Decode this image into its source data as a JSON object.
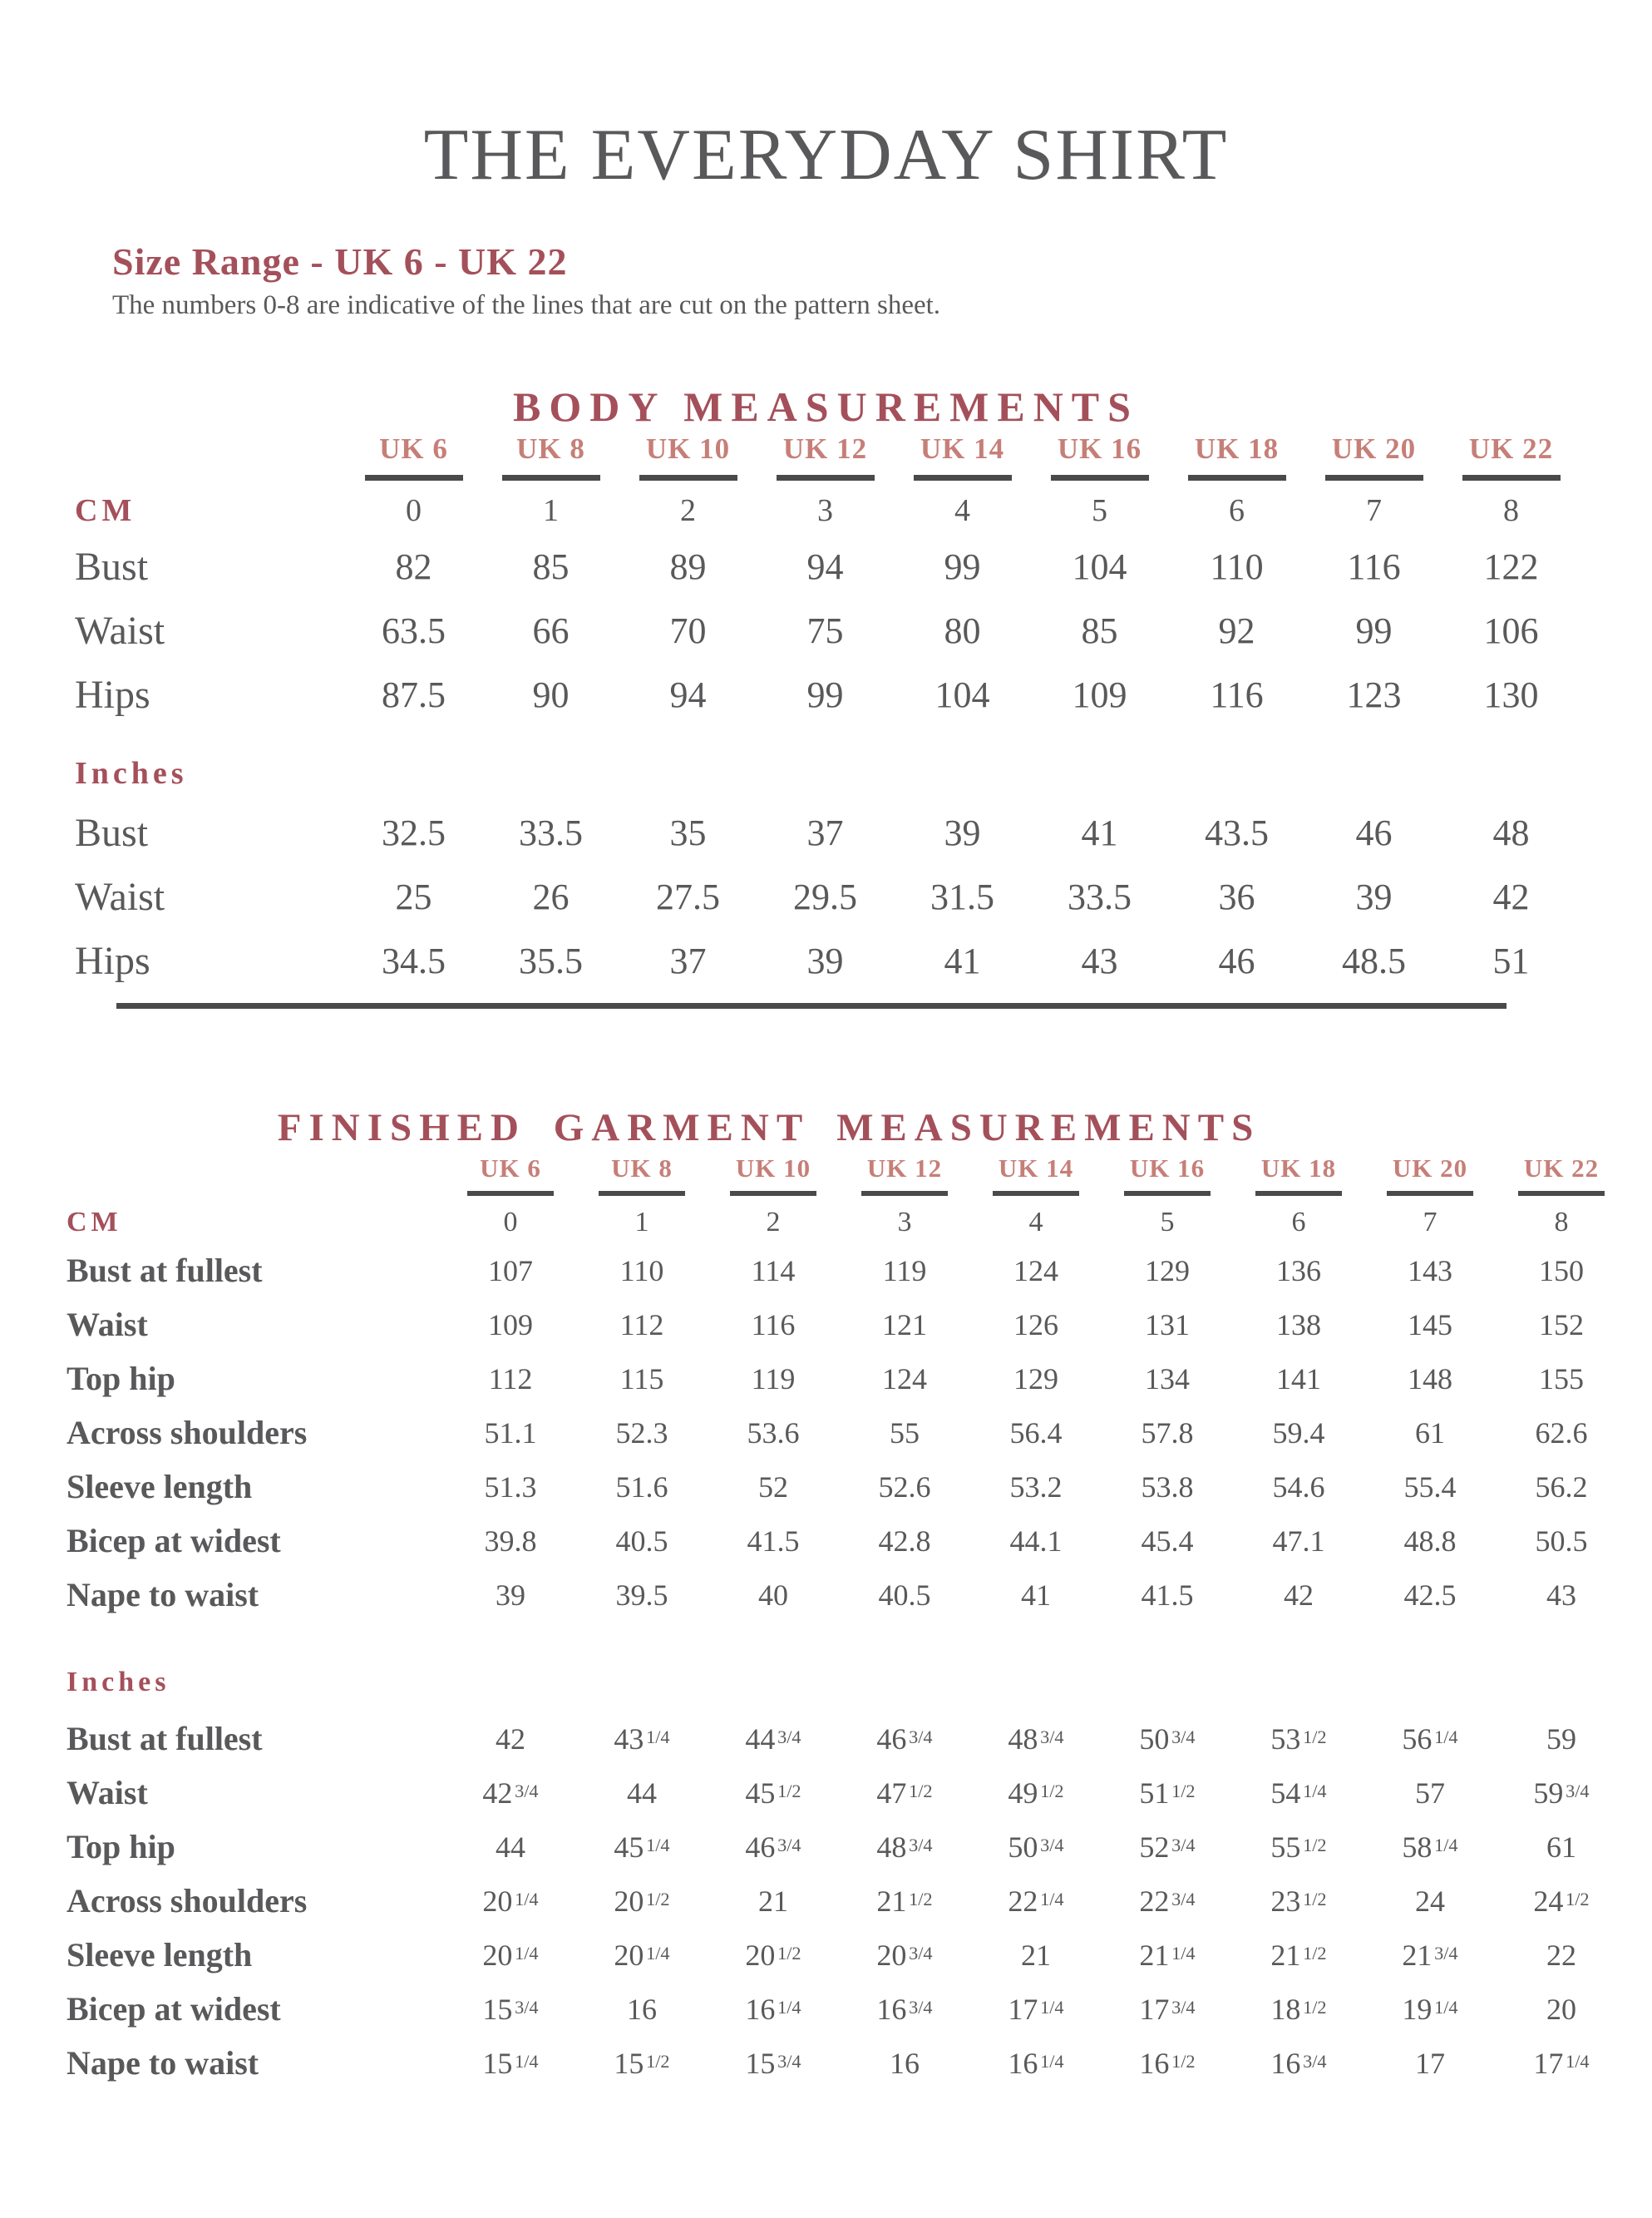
{
  "page": {
    "title": "THE EVERYDAY SHIRT",
    "size_range_heading": "Size Range - UK 6 - UK 22",
    "size_range_note": "The numbers 0-8 are indicative of the lines that are cut on the pattern sheet."
  },
  "colors": {
    "heading_maroon": "#a4505a",
    "uk_header_salmon": "#c67f78",
    "text_gray": "#59595b",
    "rule_gray": "#4a4a4a"
  },
  "columns": {
    "uk_sizes": [
      "UK 6",
      "UK 8",
      "UK 10",
      "UK 12",
      "UK 14",
      "UK 16",
      "UK 18",
      "UK 20",
      "UK 22"
    ],
    "pattern_line_numbers": [
      "0",
      "1",
      "2",
      "3",
      "4",
      "5",
      "6",
      "7",
      "8"
    ]
  },
  "body_measurements": {
    "title": "BODY MEASUREMENTS",
    "cm_label": "CM",
    "inches_label": "Inches",
    "cm_rows": [
      {
        "label": "Bust",
        "values": [
          "82",
          "85",
          "89",
          "94",
          "99",
          "104",
          "110",
          "116",
          "122"
        ]
      },
      {
        "label": "Waist",
        "values": [
          "63.5",
          "66",
          "70",
          "75",
          "80",
          "85",
          "92",
          "99",
          "106"
        ]
      },
      {
        "label": "Hips",
        "values": [
          "87.5",
          "90",
          "94",
          "99",
          "104",
          "109",
          "116",
          "123",
          "130"
        ]
      }
    ],
    "inches_rows": [
      {
        "label": "Bust",
        "values": [
          "32.5",
          "33.5",
          "35",
          "37",
          "39",
          "41",
          "43.5",
          "46",
          "48"
        ]
      },
      {
        "label": "Waist",
        "values": [
          "25",
          "26",
          "27.5",
          "29.5",
          "31.5",
          "33.5",
          "36",
          "39",
          "42"
        ]
      },
      {
        "label": "Hips",
        "values": [
          "34.5",
          "35.5",
          "37",
          "39",
          "41",
          "43",
          "46",
          "48.5",
          "51"
        ]
      }
    ]
  },
  "finished_garment": {
    "title": "FINISHED GARMENT MEASUREMENTS",
    "cm_label": "CM",
    "inches_label": "Inches",
    "cm_rows": [
      {
        "label": "Bust at fullest",
        "values": [
          "107",
          "110",
          "114",
          "119",
          "124",
          "129",
          "136",
          "143",
          "150"
        ]
      },
      {
        "label": "Waist",
        "values": [
          "109",
          "112",
          "116",
          "121",
          "126",
          "131",
          "138",
          "145",
          "152"
        ]
      },
      {
        "label": "Top hip",
        "values": [
          "112",
          "115",
          "119",
          "124",
          "129",
          "134",
          "141",
          "148",
          "155"
        ]
      },
      {
        "label": "Across shoulders",
        "values": [
          "51.1",
          "52.3",
          "53.6",
          "55",
          "56.4",
          "57.8",
          "59.4",
          "61",
          "62.6"
        ]
      },
      {
        "label": "Sleeve length",
        "values": [
          "51.3",
          "51.6",
          "52",
          "52.6",
          "53.2",
          "53.8",
          "54.6",
          "55.4",
          "56.2"
        ]
      },
      {
        "label": "Bicep at widest",
        "values": [
          "39.8",
          "40.5",
          "41.5",
          "42.8",
          "44.1",
          "45.4",
          "47.1",
          "48.8",
          "50.5"
        ]
      },
      {
        "label": "Nape to waist",
        "values": [
          "39",
          "39.5",
          "40",
          "40.5",
          "41",
          "41.5",
          "42",
          "42.5",
          "43"
        ]
      }
    ],
    "inches_rows": [
      {
        "label": "Bust at fullest",
        "values": [
          "42",
          "43 1/4",
          "44 3/4",
          "46 3/4",
          "48 3/4",
          "50 3/4",
          "53 1/2",
          "56 1/4",
          "59"
        ]
      },
      {
        "label": "Waist",
        "values": [
          "42 3/4",
          "44",
          "45 1/2",
          "47 1/2",
          "49 1/2",
          "51 1/2",
          "54 1/4",
          "57",
          "59 3/4"
        ]
      },
      {
        "label": "Top hip",
        "values": [
          "44",
          "45 1/4",
          "46 3/4",
          "48 3/4",
          "50 3/4",
          "52 3/4",
          "55 1/2",
          "58 1/4",
          "61"
        ]
      },
      {
        "label": "Across shoulders",
        "values": [
          "20 1/4",
          "20 1/2",
          "21",
          "21 1/2",
          "22 1/4",
          "22 3/4",
          "23 1/2",
          "24",
          "24 1/2"
        ]
      },
      {
        "label": "Sleeve length",
        "values": [
          "20 1/4",
          "20 1/4",
          "20 1/2",
          "20 3/4",
          "21",
          "21 1/4",
          "21 1/2",
          "21 3/4",
          "22"
        ]
      },
      {
        "label": "Bicep at widest",
        "values": [
          "15 3/4",
          "16",
          "16 1/4",
          "16 3/4",
          "17 1/4",
          "17 3/4",
          "18 1/2",
          "19 1/4",
          "20"
        ]
      },
      {
        "label": "Nape to waist",
        "values": [
          "15 1/4",
          "15 1/2",
          "15 3/4",
          "16",
          "16 1/4",
          "16 1/2",
          "16 3/4",
          "17",
          "17 1/4"
        ]
      }
    ]
  }
}
